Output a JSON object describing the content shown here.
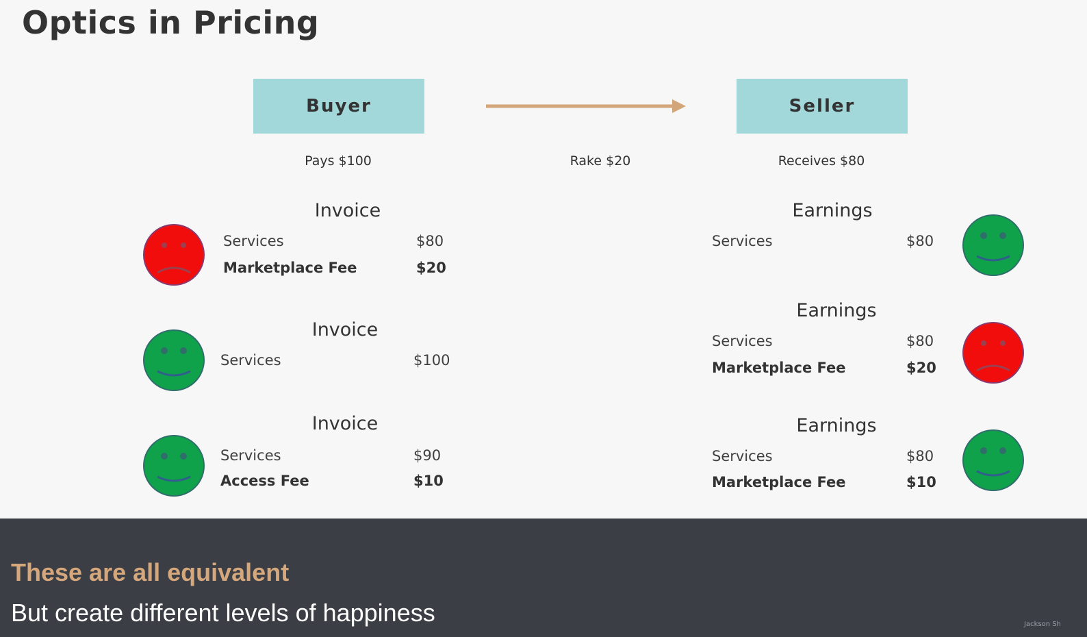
{
  "title": "Optics in Pricing",
  "flow": {
    "buyer_label": "Buyer",
    "seller_label": "Seller",
    "buyer_note": "Pays $100",
    "rake_note": "Rake $20",
    "seller_note": "Receives $80",
    "arrow_color": "#d2a679",
    "box_color": "#a3d8db"
  },
  "buyer_scenarios": [
    {
      "heading": "Invoice",
      "mood": "sad-face-icon",
      "lines": [
        {
          "label": "Services",
          "amount": "$80"
        },
        {
          "label": "Marketplace Fee",
          "amount": "$20"
        }
      ]
    },
    {
      "heading": "Invoice",
      "mood": "happy-face-icon",
      "lines": [
        {
          "label": "Services",
          "amount": "$100"
        }
      ]
    },
    {
      "heading": "Invoice",
      "mood": "happy-face-icon",
      "lines": [
        {
          "label": "Services",
          "amount": "$90"
        },
        {
          "label": "Access Fee",
          "amount": "$10"
        }
      ]
    }
  ],
  "seller_scenarios": [
    {
      "heading": "Earnings",
      "mood": "happy-face-icon",
      "lines": [
        {
          "label": "Services",
          "amount": "$80"
        }
      ]
    },
    {
      "heading": "Earnings",
      "mood": "sad-face-icon",
      "lines": [
        {
          "label": "Services",
          "amount": "$80"
        },
        {
          "label": "Marketplace Fee",
          "amount": "$20"
        }
      ]
    },
    {
      "heading": "Earnings",
      "mood": "happy-face-icon",
      "lines": [
        {
          "label": "Services",
          "amount": "$80"
        },
        {
          "label": "Marketplace Fee",
          "amount": "$10"
        }
      ]
    }
  ],
  "colors": {
    "happy": "#10a24a",
    "sad": "#f20d0d",
    "footer_bg": "#3b3e45",
    "footer_accent": "#d4a77c"
  },
  "footer": {
    "headline": "These are all equivalent",
    "subline": "But create different levels of happiness",
    "credit": "Jackson Sh"
  }
}
